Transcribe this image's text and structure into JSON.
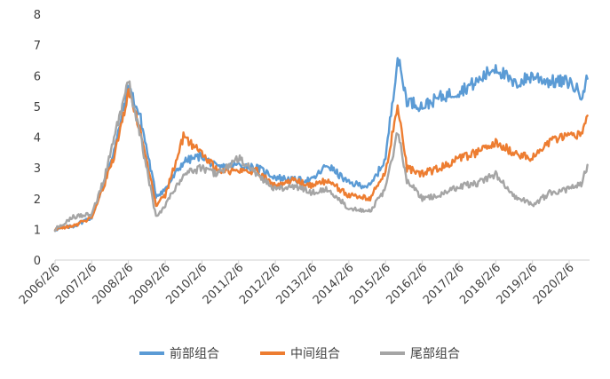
{
  "chart_data": {
    "type": "line",
    "title": "",
    "xlabel": "",
    "ylabel": "",
    "ylim": [
      0,
      8
    ],
    "yticks": [
      0,
      1,
      2,
      3,
      4,
      5,
      6,
      7,
      8
    ],
    "x_tick_labels": [
      "2006/2/6",
      "2007/2/6",
      "2008/2/6",
      "2009/2/6",
      "2010/2/6",
      "2011/2/6",
      "2012/2/6",
      "2013/2/6",
      "2014/2/6",
      "2015/2/6",
      "2016/2/6",
      "2017/2/6",
      "2018/2/6",
      "2019/2/6",
      "2020/2/6"
    ],
    "grid": false,
    "legend_position": "bottom",
    "x": [
      "2006/2/6",
      "2006/8/6",
      "2007/2/6",
      "2007/6/6",
      "2007/10/6",
      "2008/2/6",
      "2008/6/6",
      "2008/11/6",
      "2009/2/6",
      "2009/8/6",
      "2010/2/6",
      "2010/7/6",
      "2011/2/6",
      "2011/8/6",
      "2012/2/6",
      "2012/8/6",
      "2013/2/6",
      "2013/7/6",
      "2014/2/6",
      "2014/9/6",
      "2015/2/6",
      "2015/6/6",
      "2015/9/6",
      "2016/2/6",
      "2016/8/6",
      "2017/2/6",
      "2017/8/6",
      "2018/2/6",
      "2018/8/6",
      "2019/2/6",
      "2019/8/6",
      "2020/2/6",
      "2020/6/6",
      "2020/8/6"
    ],
    "series": [
      {
        "name": "前部组合",
        "color": "#5B9BD5",
        "values": [
          1.0,
          1.1,
          1.4,
          2.5,
          3.8,
          5.7,
          4.6,
          2.1,
          2.3,
          3.2,
          3.4,
          3.0,
          3.1,
          3.0,
          2.7,
          2.6,
          2.6,
          3.1,
          2.5,
          2.4,
          3.3,
          6.6,
          5.2,
          5.0,
          5.3,
          5.5,
          5.8,
          6.3,
          5.7,
          6.0,
          5.8,
          5.8,
          5.4,
          5.9
        ]
      },
      {
        "name": "中间组合",
        "color": "#ED7D31",
        "values": [
          1.0,
          1.1,
          1.4,
          2.4,
          3.6,
          5.5,
          4.2,
          1.8,
          2.1,
          4.0,
          3.5,
          2.9,
          2.9,
          2.9,
          2.4,
          2.6,
          2.4,
          2.6,
          2.1,
          2.0,
          2.9,
          5.0,
          3.0,
          2.8,
          3.0,
          3.3,
          3.5,
          3.8,
          3.5,
          3.3,
          3.9,
          4.0,
          4.1,
          4.7
        ]
      },
      {
        "name": "尾部组合",
        "color": "#A5A5A5",
        "values": [
          1.0,
          1.4,
          1.5,
          2.6,
          4.2,
          5.8,
          4.0,
          1.4,
          1.8,
          2.8,
          3.0,
          2.8,
          3.3,
          2.8,
          2.3,
          2.4,
          2.2,
          2.3,
          1.7,
          1.6,
          2.3,
          4.2,
          2.6,
          2.0,
          2.1,
          2.4,
          2.5,
          2.8,
          2.1,
          1.8,
          2.2,
          2.3,
          2.5,
          3.1
        ]
      }
    ]
  }
}
